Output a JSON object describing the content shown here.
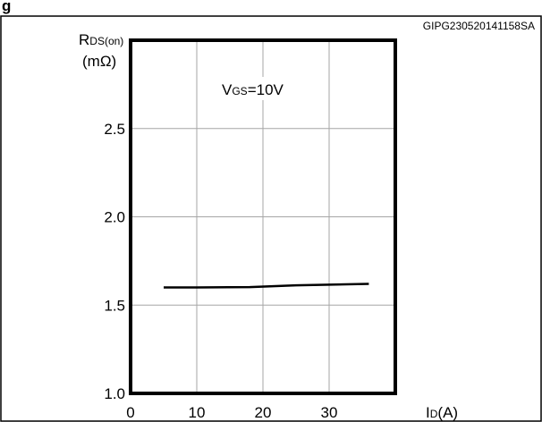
{
  "header_fragment": "g",
  "figure_id": "GIPG230520141158SA",
  "annotation": {
    "main": "V",
    "sub": "GS",
    "rest": "=10V"
  },
  "chart_data": {
    "type": "line",
    "title": "",
    "ylabel": {
      "main": "R",
      "sub": "DS(on)",
      "unit": "(mΩ)"
    },
    "xlabel": {
      "main": "I",
      "sub": "D",
      "unit": "(A)"
    },
    "xlim": [
      0,
      40
    ],
    "ylim": [
      1.0,
      3.0
    ],
    "x_ticks": [
      0,
      10,
      20,
      30
    ],
    "x_tick_labels": [
      "0",
      "10",
      "20",
      "30"
    ],
    "y_ticks": [
      1.0,
      1.5,
      2.0,
      2.5
    ],
    "y_tick_labels": [
      "1.0",
      "1.5",
      "2.0",
      "2.5"
    ],
    "grid": true,
    "series": [
      {
        "x": [
          5,
          10,
          18,
          25,
          36
        ],
        "y": [
          1.6,
          1.6,
          1.602,
          1.612,
          1.62
        ],
        "color": "#000000"
      }
    ]
  }
}
